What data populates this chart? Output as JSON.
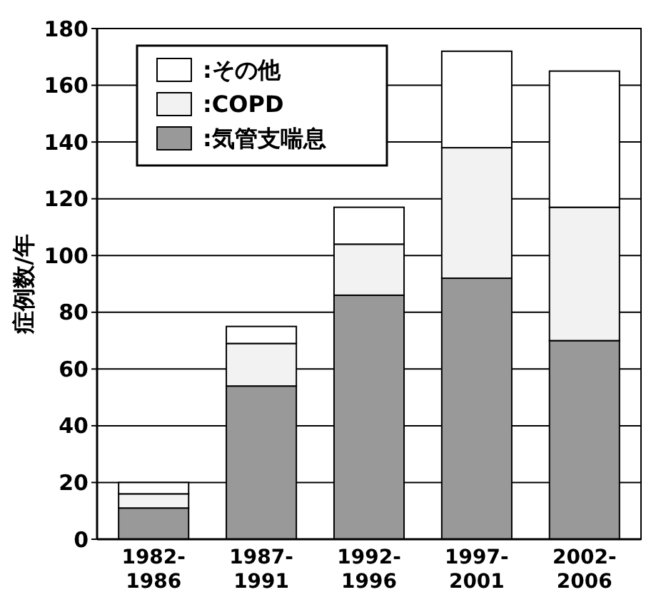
{
  "chart_data": {
    "type": "bar",
    "stacked": true,
    "ylabel": "症例数/年",
    "categories": [
      "1982-\n1986",
      "1987-\n1991",
      "1992-\n1996",
      "1997-\n2001",
      "2002-\n2006"
    ],
    "series": [
      {
        "name": ":気管支喘息",
        "color": "#999999",
        "values": [
          11,
          54,
          86,
          92,
          70
        ]
      },
      {
        "name": ":COPD",
        "color": "#f2f2f2",
        "values": [
          5,
          15,
          18,
          46,
          47
        ]
      },
      {
        "name": ":その他",
        "color": "#ffffff",
        "values": [
          4,
          6,
          13,
          34,
          48
        ]
      }
    ],
    "ylim": [
      0,
      180
    ],
    "yticks": [
      0,
      20,
      40,
      60,
      80,
      100,
      120,
      140,
      160,
      180
    ],
    "grid": "y",
    "legend": "top left"
  }
}
